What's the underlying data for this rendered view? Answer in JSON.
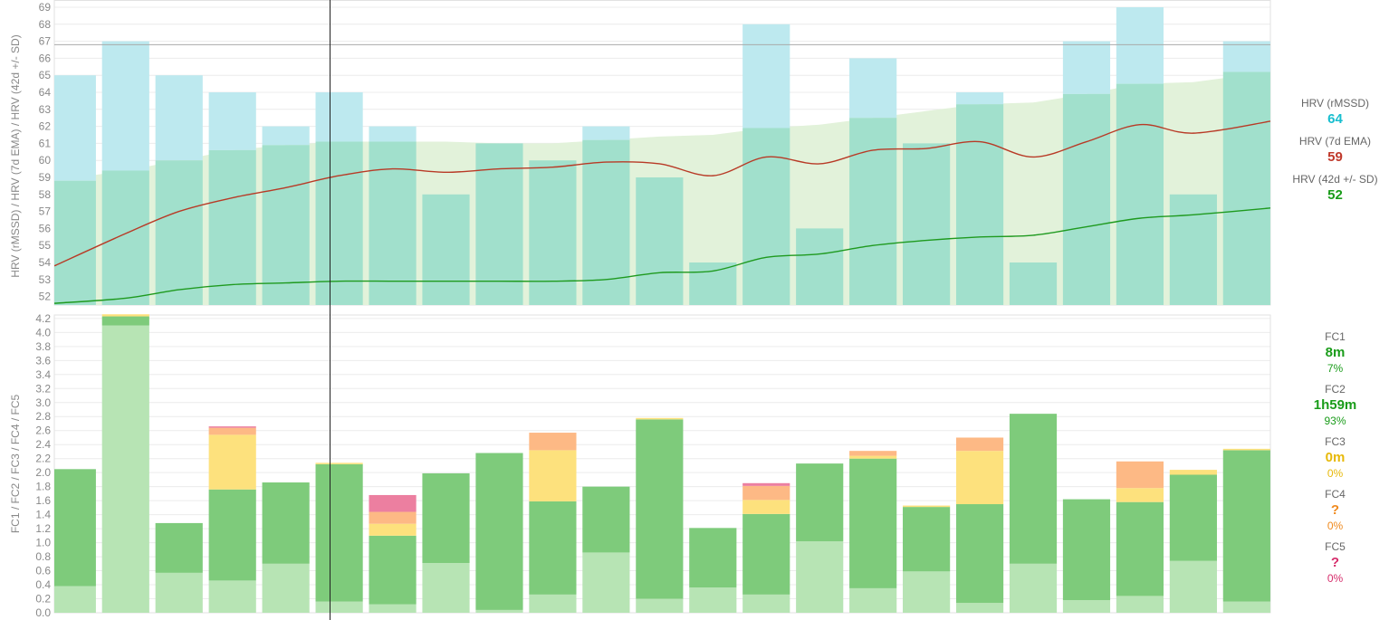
{
  "chart_data": [
    {
      "type": "bar",
      "ylabel": "HRV (rMSSD) / HRV (7d EMA) / HRV (42d +/- SD)",
      "ylim": [
        51.5,
        69
      ],
      "yticks": [
        52,
        53,
        54,
        55,
        56,
        57,
        58,
        59,
        60,
        61,
        62,
        63,
        64,
        65,
        66,
        67,
        68,
        69
      ],
      "reference_line": 66.8,
      "grid": true,
      "series": [
        {
          "name": "HRV (rMSSD)",
          "type": "bar",
          "values": [
            65,
            67,
            65,
            64,
            62,
            64,
            62,
            58,
            61,
            60,
            62,
            59,
            54,
            68,
            56,
            66,
            61,
            64,
            54,
            67,
            69,
            58,
            67
          ]
        },
        {
          "name": "HRV (7d EMA)",
          "type": "line",
          "values": [
            53.8,
            55.7,
            57.0,
            57.8,
            58.4,
            59.1,
            59.5,
            59.3,
            59.5,
            59.6,
            59.9,
            59.8,
            59.1,
            60.2,
            59.8,
            60.6,
            60.7,
            61.1,
            60.2,
            61.1,
            62.1,
            61.6,
            62.3
          ]
        },
        {
          "name": "HRV (42d +/- SD)",
          "type": "line",
          "values": [
            51.6,
            51.9,
            52.4,
            52.7,
            52.8,
            52.9,
            52.9,
            52.9,
            52.9,
            52.9,
            53.0,
            53.4,
            53.5,
            54.3,
            54.5,
            55.0,
            55.3,
            55.5,
            55.6,
            56.1,
            56.6,
            56.8,
            57.2
          ]
        },
        {
          "name": "HRV (42d +/- SD) upper band",
          "type": "area",
          "values": [
            58.8,
            59.4,
            60.0,
            60.6,
            60.9,
            61.1,
            61.1,
            61.1,
            61.0,
            61.0,
            61.2,
            61.4,
            61.5,
            61.9,
            62.1,
            62.5,
            62.9,
            63.3,
            63.4,
            63.9,
            64.5,
            64.6,
            65.2
          ]
        }
      ]
    },
    {
      "type": "bar",
      "stacked": true,
      "ylabel": "FC1 / FC2 / FC3 / FC4 / FC5",
      "ylim": [
        0,
        4.25
      ],
      "yticks": [
        "0.0",
        "0.2",
        "0.4",
        "0.6",
        "0.8",
        "1.0",
        "1.2",
        "1.4",
        "1.6",
        "1.8",
        "2.0",
        "2.2",
        "2.4",
        "2.6",
        "2.8",
        "3.0",
        "3.2",
        "3.4",
        "3.6",
        "3.8",
        "4.0",
        "4.2"
      ],
      "grid": true,
      "series": [
        {
          "name": "FC1",
          "values": [
            0.38,
            4.1,
            0.57,
            0.46,
            0.7,
            0.16,
            0.12,
            0.71,
            0.04,
            0.26,
            0.86,
            0.2,
            0.36,
            0.26,
            1.02,
            0.35,
            0.59,
            0.14,
            0.7,
            0.18,
            0.24,
            0.74,
            0.16
          ]
        },
        {
          "name": "FC2",
          "values": [
            1.67,
            0.13,
            0.71,
            1.3,
            1.16,
            1.96,
            0.98,
            1.28,
            2.24,
            1.33,
            0.94,
            2.56,
            0.85,
            1.15,
            1.11,
            1.85,
            0.92,
            1.41,
            2.14,
            1.44,
            1.34,
            1.23,
            2.16
          ]
        },
        {
          "name": "FC3",
          "values": [
            0,
            0.03,
            0,
            0.78,
            0,
            0.02,
            0.17,
            0,
            0,
            0.73,
            0,
            0.02,
            0,
            0.2,
            0,
            0.04,
            0.02,
            0.76,
            0,
            0,
            0.2,
            0.07,
            0.02
          ]
        },
        {
          "name": "FC4",
          "values": [
            0,
            0,
            0,
            0.1,
            0,
            0,
            0.17,
            0,
            0,
            0.25,
            0,
            0,
            0,
            0.2,
            0,
            0.07,
            0,
            0.19,
            0,
            0,
            0.38,
            0,
            0
          ]
        },
        {
          "name": "FC5",
          "values": [
            0,
            0,
            0,
            0.02,
            0,
            0,
            0.24,
            0,
            0,
            0,
            0,
            0,
            0,
            0.04,
            0,
            0,
            0,
            0,
            0,
            0,
            0,
            0,
            0
          ]
        }
      ]
    }
  ],
  "legend": {
    "hrv_rmssd": {
      "name": "HRV (rMSSD)",
      "value": "64"
    },
    "hrv_ema": {
      "name": "HRV (7d EMA)",
      "value": "59"
    },
    "hrv_sd": {
      "name": "HRV (42d +/- SD)",
      "value": "52"
    },
    "fc1": {
      "name": "FC1",
      "value": "8m",
      "pct": "7%"
    },
    "fc2": {
      "name": "FC2",
      "value": "1h59m",
      "pct": "93%"
    },
    "fc3": {
      "name": "FC3",
      "value": "0m",
      "pct": "0%"
    },
    "fc4": {
      "name": "FC4",
      "value": "?",
      "pct": "0%"
    },
    "fc5": {
      "name": "FC5",
      "value": "?",
      "pct": "0%"
    }
  },
  "colors": {
    "rmssd_bar": "#bde9ef",
    "overlap_bar": "#a1e0cc",
    "band": "#e2f2da",
    "ema_line": "#b83a26",
    "sd_line": "#1f9a1f",
    "fc1": "#b7e4b4",
    "fc2": "#7ecb7b",
    "fc3": "#fde17d",
    "fc4": "#fdb985",
    "fc5": "#ec7fa0",
    "hrv_value": "#17becf",
    "ema_value": "#c0392b",
    "sd_value": "#1a9c1a",
    "fc_value": "#1a9c1a",
    "fc3_value": "#e7b90a",
    "fc4_value": "#f08a1e",
    "fc5_value": "#d62d6b"
  }
}
